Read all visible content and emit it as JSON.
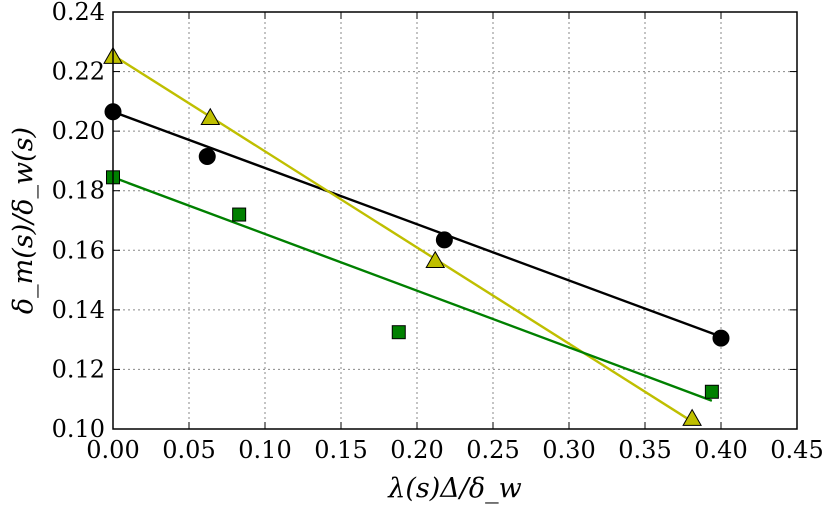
{
  "chart_data": {
    "type": "scatter",
    "title": "",
    "xlabel": "λ(s)Δ/δ_w",
    "ylabel": "δ_m(s)/δ_w(s)",
    "xlim": [
      0.0,
      0.45
    ],
    "ylim": [
      0.1,
      0.24
    ],
    "xticks": [
      "0.00",
      "0.05",
      "0.10",
      "0.15",
      "0.20",
      "0.25",
      "0.30",
      "0.35",
      "0.40",
      "0.45"
    ],
    "yticks": [
      "0.10",
      "0.12",
      "0.14",
      "0.16",
      "0.18",
      "0.20",
      "0.22",
      "0.24"
    ],
    "grid": true,
    "legend": "none",
    "series": [
      {
        "marker": "circle",
        "color": "#000000",
        "points": [
          [
            0.0,
            0.2065
          ],
          [
            0.062,
            0.1915
          ],
          [
            0.218,
            0.1635
          ],
          [
            0.4,
            0.1305
          ]
        ],
        "fit": [
          [
            0.0,
            0.2065
          ],
          [
            0.4,
            0.131
          ]
        ]
      },
      {
        "marker": "triangle",
        "color": "#bfbf00",
        "points": [
          [
            0.0,
            0.225
          ],
          [
            0.064,
            0.2045
          ],
          [
            0.212,
            0.1565
          ],
          [
            0.381,
            0.1035
          ]
        ],
        "fit": [
          [
            0.0,
            0.2255
          ],
          [
            0.381,
            0.1025
          ]
        ]
      },
      {
        "marker": "square",
        "color": "#008000",
        "points": [
          [
            0.0,
            0.1845
          ],
          [
            0.083,
            0.172
          ],
          [
            0.188,
            0.1325
          ],
          [
            0.394,
            0.1125
          ]
        ],
        "fit": [
          [
            0.0,
            0.1845
          ],
          [
            0.394,
            0.1095
          ]
        ]
      }
    ]
  }
}
